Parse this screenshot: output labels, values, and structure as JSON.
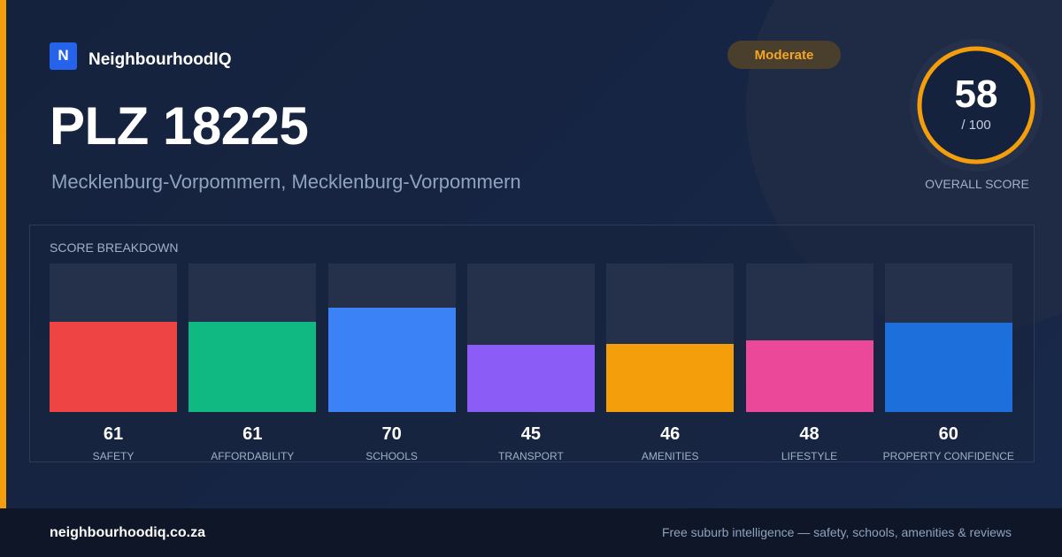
{
  "brand": {
    "logo_letter": "N",
    "name": "NeighbourhoodIQ"
  },
  "badge": {
    "label": "Moderate",
    "color": "#f5a524"
  },
  "header": {
    "title": "PLZ 18225",
    "subtitle": "Mecklenburg-Vorpommern, Mecklenburg-Vorpommern"
  },
  "overall": {
    "score": "58",
    "max_label": "/ 100",
    "caption": "OVERALL SCORE",
    "value": 58,
    "max": 100,
    "ring_color": "#f59e0b"
  },
  "breakdown": {
    "title": "SCORE BREAKDOWN",
    "items": [
      {
        "label": "SAFETY",
        "value": "61",
        "score": 61,
        "color": "#ef4444"
      },
      {
        "label": "AFFORDABILITY",
        "value": "61",
        "score": 61,
        "color": "#10b981"
      },
      {
        "label": "SCHOOLS",
        "value": "70",
        "score": 70,
        "color": "#3b82f6"
      },
      {
        "label": "TRANSPORT",
        "value": "45",
        "score": 45,
        "color": "#8b5cf6"
      },
      {
        "label": "AMENITIES",
        "value": "46",
        "score": 46,
        "color": "#f59e0b"
      },
      {
        "label": "LIFESTYLE",
        "value": "48",
        "score": 48,
        "color": "#ec4899"
      },
      {
        "label": "PROPERTY CONFIDENCE",
        "value": "60",
        "score": 60,
        "color": "#1d6fdb"
      }
    ]
  },
  "footer": {
    "domain": "neighbourhoodiq.co.za",
    "tagline": "Free suburb intelligence — safety, schools, amenities & reviews"
  }
}
